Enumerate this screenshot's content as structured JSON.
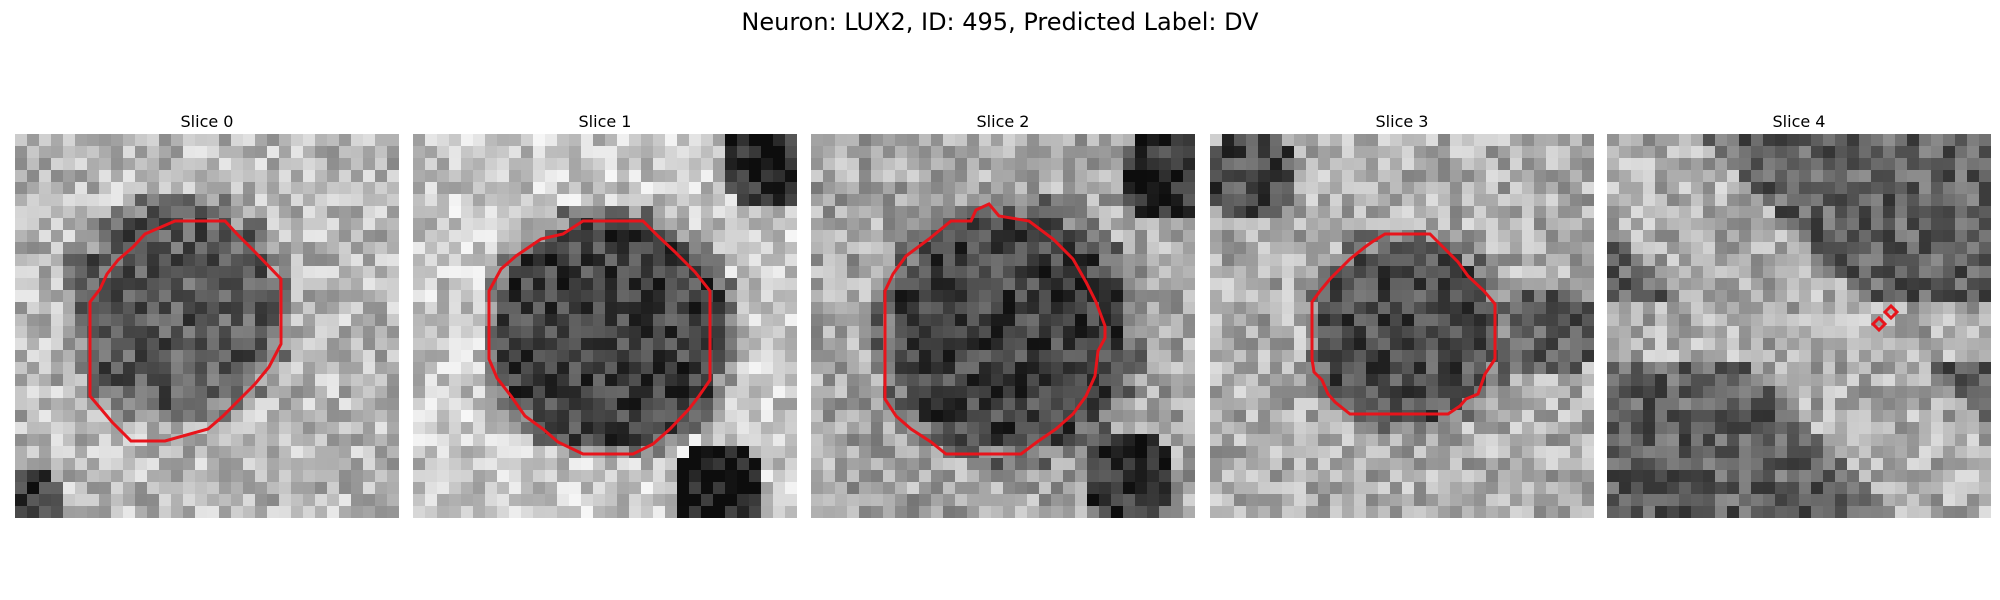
{
  "figure": {
    "title": "Neuron: LUX2, ID: 495, Predicted Label: DV"
  },
  "panels": [
    {
      "title": "Slice 0",
      "contour": "large-octagon",
      "contour_color": "#e8141b"
    },
    {
      "title": "Slice 1",
      "contour": "large-octagon",
      "contour_color": "#e8141b"
    },
    {
      "title": "Slice 2",
      "contour": "large-octagon",
      "contour_color": "#e8141b"
    },
    {
      "title": "Slice 3",
      "contour": "octagon",
      "contour_color": "#e8141b"
    },
    {
      "title": "Slice 4",
      "contour": "two-small-diamonds",
      "contour_color": "#e8141b"
    }
  ]
}
